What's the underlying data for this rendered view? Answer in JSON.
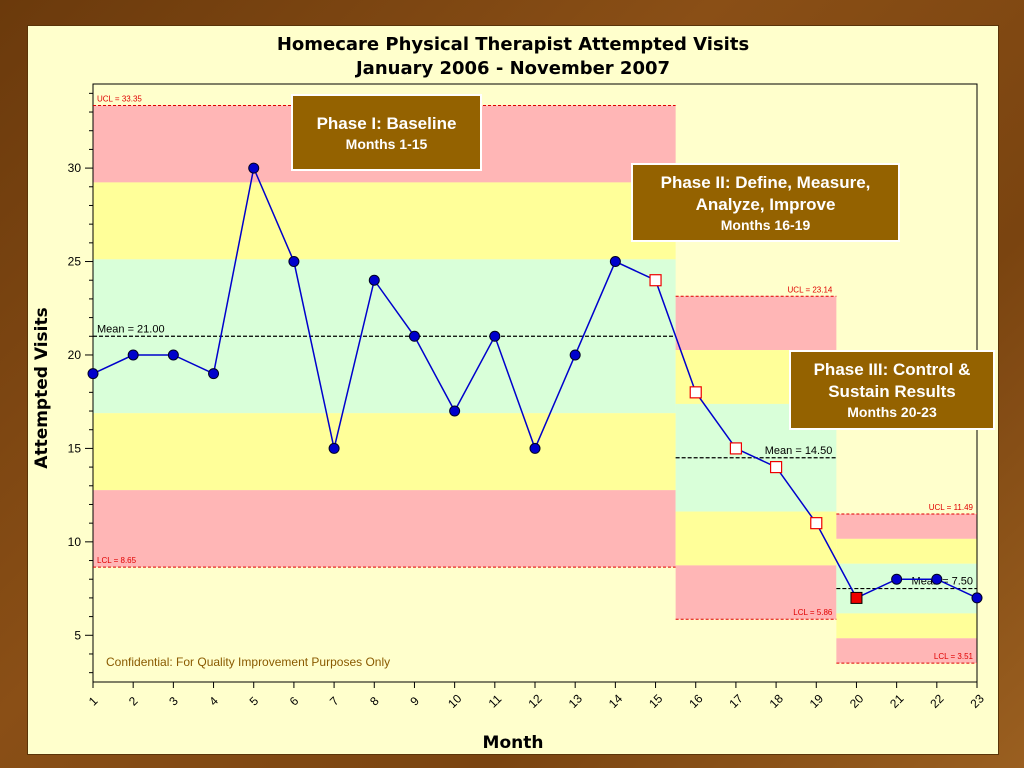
{
  "chart_data": {
    "type": "line",
    "title": "Homecare Physical Therapist Attempted Visits",
    "subtitle": "January 2006 - November 2007",
    "xlabel": "Month",
    "ylabel": "Attempted Visits",
    "ylim": [
      2.5,
      34.5
    ],
    "yticks": [
      5,
      10,
      15,
      20,
      25,
      30
    ],
    "categories": [
      "1",
      "2",
      "3",
      "4",
      "5",
      "6",
      "7",
      "8",
      "9",
      "10",
      "11",
      "12",
      "13",
      "14",
      "15",
      "16",
      "17",
      "18",
      "19",
      "20",
      "21",
      "22",
      "23"
    ],
    "values": [
      19,
      20,
      20,
      19,
      30,
      25,
      15,
      24,
      21,
      17,
      21,
      15,
      20,
      25,
      24,
      18,
      15,
      14,
      11,
      7,
      8,
      8,
      7
    ],
    "point_styles": [
      "circle",
      "circle",
      "circle",
      "circle",
      "circle",
      "circle",
      "circle",
      "circle",
      "circle",
      "circle",
      "circle",
      "circle",
      "circle",
      "circle",
      "square-open",
      "square-open",
      "square-open",
      "square-open",
      "square-open",
      "square-filled",
      "circle",
      "circle",
      "circle"
    ],
    "colors": {
      "line": "#0000cc",
      "circle_fill": "#0000cc",
      "square_open_fill": "#ffffff",
      "square_open_stroke": "#ee0000",
      "square_filled": "#ee0000",
      "zone_outer": "#ffb6b6",
      "zone_middle": "#ffff99",
      "zone_inner": "#d9ffd9",
      "limit_line": "#e00000",
      "mean_line": "#000000"
    },
    "phases": [
      {
        "from": 1,
        "to": 15,
        "ucl": 33.35,
        "lcl": 8.65,
        "mean": 21.0,
        "ucl_label": "UCL = 33.35",
        "lcl_label": "LCL = 8.65",
        "mean_label": "Mean = 21.00"
      },
      {
        "from": 16,
        "to": 19,
        "ucl": 23.14,
        "lcl": 5.86,
        "mean": 14.5,
        "ucl_label": "UCL = 23.14",
        "lcl_label": "LCL = 5.86",
        "mean_label": "Mean = 14.50"
      },
      {
        "from": 20,
        "to": 23,
        "ucl": 11.49,
        "lcl": 3.51,
        "mean": 7.5,
        "ucl_label": "UCL = 11.49",
        "lcl_label": "LCL = 3.51",
        "mean_label": "Mean = 7.50"
      }
    ],
    "annotation": "Confidential: For Quality Improvement Purposes Only"
  },
  "phase_boxes": [
    {
      "title": "Phase I:  Baseline",
      "subtitle": "Months 1-15"
    },
    {
      "title": "Phase II: Define, Measure, Analyze, Improve",
      "subtitle": "Months 16-19"
    },
    {
      "title": "Phase III: Control & Sustain Results",
      "subtitle": "Months 20-23"
    }
  ]
}
